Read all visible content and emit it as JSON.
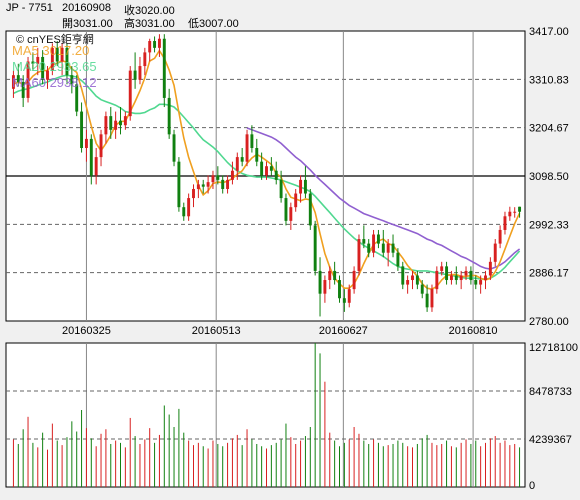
{
  "header": {
    "ticker": "JP - 7751",
    "date": "20160908",
    "close": "收3020.00",
    "open": "開3031.00",
    "high": "高3031.00",
    "low": "低3007.00"
  },
  "watermark": "© cnYES鉅亨網",
  "legend": [
    {
      "label": "MA5 3017.20",
      "color": "#f0a020"
    },
    {
      "label": "MA20 2933.65",
      "color": "#50d890"
    },
    {
      "label": "MA60 2938.12",
      "color": "#9060d0"
    }
  ],
  "colors": {
    "up": "#d82020",
    "down": "#108010",
    "ma5": "#f0a020",
    "ma20": "#50d890",
    "ma60": "#9060d0"
  },
  "chart_data": [
    {
      "type": "candlestick",
      "ylim": [
        2780,
        3417
      ],
      "y_ticks": [
        "3417.00",
        "3310.83",
        "3204.67",
        "3098.50",
        "2992.33",
        "2886.17",
        "2780.00"
      ],
      "x_labels": [
        "20160325",
        "20160513",
        "20160627",
        "20160810"
      ],
      "reference_line": 3098.5,
      "candles": [
        [
          3290,
          3330,
          3270,
          3320
        ],
        [
          3320,
          3345,
          3295,
          3305
        ],
        [
          3305,
          3320,
          3250,
          3270
        ],
        [
          3270,
          3360,
          3260,
          3350
        ],
        [
          3350,
          3370,
          3330,
          3345
        ],
        [
          3345,
          3380,
          3320,
          3360
        ],
        [
          3360,
          3375,
          3300,
          3310
        ],
        [
          3310,
          3340,
          3290,
          3330
        ],
        [
          3330,
          3390,
          3320,
          3380
        ],
        [
          3380,
          3395,
          3340,
          3350
        ],
        [
          3350,
          3390,
          3320,
          3380
        ],
        [
          3380,
          3390,
          3300,
          3320
        ],
        [
          3320,
          3340,
          3280,
          3300
        ],
        [
          3300,
          3320,
          3230,
          3240
        ],
        [
          3240,
          3260,
          3150,
          3160
        ],
        [
          3160,
          3200,
          3130,
          3180
        ],
        [
          3180,
          3190,
          3080,
          3100
        ],
        [
          3100,
          3160,
          3080,
          3140
        ],
        [
          3140,
          3200,
          3120,
          3190
        ],
        [
          3190,
          3240,
          3170,
          3230
        ],
        [
          3230,
          3250,
          3180,
          3200
        ],
        [
          3200,
          3240,
          3180,
          3220
        ],
        [
          3220,
          3250,
          3190,
          3210
        ],
        [
          3210,
          3240,
          3200,
          3230
        ],
        [
          3230,
          3340,
          3220,
          3330
        ],
        [
          3330,
          3370,
          3290,
          3310
        ],
        [
          3310,
          3360,
          3300,
          3340
        ],
        [
          3340,
          3380,
          3320,
          3370
        ],
        [
          3370,
          3400,
          3350,
          3395
        ],
        [
          3395,
          3405,
          3370,
          3380
        ],
        [
          3380,
          3410,
          3360,
          3400
        ],
        [
          3400,
          3410,
          3250,
          3270
        ],
        [
          3270,
          3290,
          3180,
          3190
        ],
        [
          3190,
          3200,
          3120,
          3130
        ],
        [
          3130,
          3140,
          3020,
          3030
        ],
        [
          3030,
          3040,
          3000,
          3010
        ],
        [
          3010,
          3060,
          3000,
          3050
        ],
        [
          3050,
          3080,
          3030,
          3070
        ],
        [
          3070,
          3090,
          3050,
          3080
        ],
        [
          3080,
          3090,
          3060,
          3075
        ],
        [
          3075,
          3100,
          3060,
          3085
        ],
        [
          3085,
          3110,
          3070,
          3100
        ],
        [
          3100,
          3120,
          3080,
          3090
        ],
        [
          3090,
          3100,
          3060,
          3070
        ],
        [
          3070,
          3100,
          3060,
          3090
        ],
        [
          3090,
          3130,
          3080,
          3110
        ],
        [
          3110,
          3150,
          3090,
          3140
        ],
        [
          3140,
          3160,
          3120,
          3130
        ],
        [
          3130,
          3200,
          3120,
          3190
        ],
        [
          3190,
          3210,
          3150,
          3160
        ],
        [
          3160,
          3180,
          3120,
          3130
        ],
        [
          3130,
          3150,
          3090,
          3100
        ],
        [
          3100,
          3130,
          3090,
          3120
        ],
        [
          3120,
          3140,
          3100,
          3110
        ],
        [
          3110,
          3130,
          3080,
          3090
        ],
        [
          3090,
          3110,
          3040,
          3050
        ],
        [
          3050,
          3060,
          2990,
          3000
        ],
        [
          3000,
          3040,
          2980,
          3030
        ],
        [
          3030,
          3070,
          3020,
          3060
        ],
        [
          3060,
          3100,
          3040,
          3090
        ],
        [
          3090,
          3120,
          3050,
          3060
        ],
        [
          3060,
          3070,
          2980,
          2990
        ],
        [
          2990,
          3000,
          2880,
          2890
        ],
        [
          2890,
          2920,
          2790,
          2840
        ],
        [
          2840,
          2880,
          2820,
          2870
        ],
        [
          2870,
          2900,
          2850,
          2890
        ],
        [
          2890,
          2910,
          2860,
          2870
        ],
        [
          2870,
          2880,
          2820,
          2830
        ],
        [
          2830,
          2850,
          2800,
          2820
        ],
        [
          2820,
          2860,
          2810,
          2850
        ],
        [
          2850,
          2900,
          2840,
          2890
        ],
        [
          2890,
          2970,
          2880,
          2960
        ],
        [
          2960,
          2990,
          2940,
          2950
        ],
        [
          2950,
          2960,
          2920,
          2930
        ],
        [
          2930,
          2980,
          2920,
          2970
        ],
        [
          2970,
          2980,
          2940,
          2950
        ],
        [
          2950,
          2980,
          2920,
          2930
        ],
        [
          2930,
          2960,
          2900,
          2950
        ],
        [
          2950,
          2970,
          2920,
          2930
        ],
        [
          2930,
          2940,
          2890,
          2900
        ],
        [
          2900,
          2910,
          2850,
          2860
        ],
        [
          2860,
          2880,
          2840,
          2870
        ],
        [
          2870,
          2890,
          2850,
          2880
        ],
        [
          2880,
          2890,
          2850,
          2860
        ],
        [
          2860,
          2870,
          2830,
          2840
        ],
        [
          2840,
          2860,
          2800,
          2810
        ],
        [
          2810,
          2860,
          2800,
          2850
        ],
        [
          2850,
          2900,
          2840,
          2890
        ],
        [
          2890,
          2910,
          2880,
          2900
        ],
        [
          2900,
          2910,
          2860,
          2870
        ],
        [
          2870,
          2890,
          2860,
          2880
        ],
        [
          2880,
          2900,
          2860,
          2870
        ],
        [
          2870,
          2890,
          2850,
          2880
        ],
        [
          2880,
          2900,
          2870,
          2890
        ],
        [
          2890,
          2900,
          2860,
          2870
        ],
        [
          2870,
          2880,
          2850,
          2860
        ],
        [
          2860,
          2880,
          2840,
          2870
        ],
        [
          2870,
          2890,
          2850,
          2880
        ],
        [
          2880,
          2920,
          2870,
          2910
        ],
        [
          2910,
          2960,
          2900,
          2950
        ],
        [
          2950,
          2990,
          2940,
          2980
        ],
        [
          2980,
          3020,
          2970,
          3010
        ],
        [
          3010,
          3031,
          3000,
          3020
        ],
        [
          3020,
          3030,
          3007,
          3020
        ],
        [
          3031,
          3031,
          3007,
          3020
        ]
      ],
      "ma5": [
        3300,
        3305,
        3300,
        3305,
        3318,
        3326,
        3330,
        3330,
        3343,
        3346,
        3352,
        3348,
        3334,
        3326,
        3290,
        3250,
        3208,
        3170,
        3154,
        3170,
        3188,
        3210,
        3218,
        3219,
        3240,
        3262,
        3286,
        3314,
        3351,
        3357,
        3374,
        3357,
        3331,
        3298,
        3238,
        3182,
        3140,
        3108,
        3077,
        3057,
        3066,
        3082,
        3085,
        3084,
        3087,
        3093,
        3102,
        3110,
        3126,
        3138,
        3146,
        3140,
        3132,
        3124,
        3104,
        3096,
        3070,
        3052,
        3048,
        3044,
        3048,
        3046,
        3018,
        2972,
        2928,
        2898,
        2874,
        2862,
        2852,
        2852,
        2862,
        2882,
        2906,
        2928,
        2948,
        2956,
        2960,
        2950,
        2946,
        2932,
        2918,
        2902,
        2890,
        2878,
        2862,
        2852,
        2850,
        2856,
        2870,
        2880,
        2882,
        2882,
        2878,
        2878,
        2880,
        2880,
        2874,
        2870,
        2874,
        2888,
        2910,
        2938,
        2966,
        2994,
        3017.2
      ],
      "ma20": [
        3280,
        3285,
        3288,
        3290,
        3294,
        3298,
        3302,
        3305,
        3310,
        3314,
        3318,
        3320,
        3318,
        3316,
        3308,
        3298,
        3286,
        3274,
        3266,
        3262,
        3258,
        3254,
        3248,
        3240,
        3238,
        3236,
        3236,
        3238,
        3244,
        3248,
        3256,
        3256,
        3254,
        3250,
        3240,
        3228,
        3216,
        3204,
        3190,
        3178,
        3170,
        3162,
        3152,
        3140,
        3128,
        3118,
        3110,
        3104,
        3100,
        3098,
        3096,
        3096,
        3096,
        3094,
        3092,
        3090,
        3086,
        3082,
        3078,
        3074,
        3070,
        3064,
        3054,
        3042,
        3030,
        3018,
        3006,
        2994,
        2982,
        2972,
        2962,
        2954,
        2946,
        2940,
        2934,
        2928,
        2922,
        2914,
        2906,
        2900,
        2896,
        2894,
        2892,
        2890,
        2890,
        2890,
        2888,
        2886,
        2884,
        2882,
        2880,
        2878,
        2876,
        2874,
        2874,
        2874,
        2872,
        2872,
        2874,
        2880,
        2888,
        2898,
        2910,
        2922,
        2933.65
      ],
      "ma60": [
        null,
        null,
        null,
        null,
        null,
        null,
        null,
        null,
        null,
        null,
        null,
        null,
        null,
        null,
        null,
        null,
        null,
        null,
        null,
        null,
        null,
        null,
        null,
        null,
        null,
        null,
        null,
        null,
        null,
        null,
        null,
        null,
        null,
        null,
        null,
        null,
        null,
        null,
        null,
        null,
        null,
        null,
        null,
        null,
        null,
        null,
        null,
        null,
        3204,
        3200,
        3196,
        3192,
        3188,
        3184,
        3178,
        3170,
        3160,
        3150,
        3140,
        3132,
        3122,
        3112,
        3100,
        3090,
        3080,
        3070,
        3060,
        3050,
        3042,
        3034,
        3028,
        3022,
        3016,
        3012,
        3008,
        3004,
        3000,
        2996,
        2992,
        2988,
        2984,
        2980,
        2976,
        2972,
        2966,
        2960,
        2956,
        2950,
        2946,
        2940,
        2934,
        2928,
        2922,
        2918,
        2912,
        2906,
        2900,
        2896,
        2894,
        2898,
        2903,
        2910,
        2920,
        2930,
        2938.12
      ]
    },
    {
      "type": "bar",
      "title": "volume",
      "ylim": [
        0,
        12718100
      ],
      "y_ticks": [
        "12718100",
        "8478733",
        "4239367",
        "0"
      ],
      "volumes": [
        4200000,
        3800000,
        5100000,
        6200000,
        3900000,
        3500000,
        4800000,
        3300000,
        5600000,
        4100000,
        3700000,
        4400000,
        5800000,
        4900000,
        6800000,
        5200000,
        4300000,
        3600000,
        4700000,
        5100000,
        3800000,
        4100000,
        3900000,
        3500000,
        6100000,
        4500000,
        3800000,
        4200000,
        5200000,
        3900000,
        4600000,
        7200000,
        6400000,
        5300000,
        6900000,
        4800000,
        4100000,
        3700000,
        3900000,
        3600000,
        3400000,
        4100000,
        3800000,
        3600000,
        3900000,
        4300000,
        4600000,
        3700000,
        5100000,
        4200000,
        3800000,
        3600000,
        3400000,
        3700000,
        3900000,
        4200000,
        5600000,
        4400000,
        3800000,
        4100000,
        4500000,
        5300000,
        12718100,
        11800000,
        9300000,
        4800000,
        4100000,
        3600000,
        3900000,
        4200000,
        5300000,
        4700000,
        4100000,
        3800000,
        4200000,
        3900000,
        3600000,
        3700000,
        3800000,
        4100000,
        3900000,
        3600000,
        3500000,
        3800000,
        4300000,
        4600000,
        3900000,
        3700000,
        3800000,
        4100000,
        3600000,
        3500000,
        3900000,
        4200000,
        3800000,
        4100000,
        3600000,
        3900000,
        4300000,
        4500000,
        3900000,
        4100000,
        3700000,
        3800000,
        3500000
      ]
    }
  ]
}
